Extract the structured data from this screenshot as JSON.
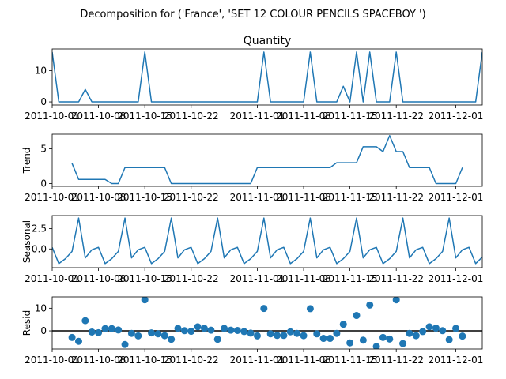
{
  "suptitle": "Decomposition for ('France', 'SET 12 COLOUR PENCILS SPACEBOY ')",
  "chart_data": {
    "type": "line",
    "x_tick_labels": [
      "2011-10-01",
      "2011-10-08",
      "2011-10-15",
      "2011-10-22",
      "2011-11-01",
      "2011-11-08",
      "2011-11-15",
      "2011-11-22",
      "2011-12-01"
    ],
    "x_tick_positions": [
      0,
      7,
      14,
      21,
      31,
      38,
      45,
      52,
      61
    ],
    "x_range": [
      0,
      65
    ],
    "colors": {
      "line": "#1f77b4",
      "axis": "#000000",
      "zero_line": "#000000"
    },
    "panels": [
      {
        "name": "observed",
        "title": "Quantity",
        "ylabel": "",
        "plot": "line",
        "ylim": [
          -1,
          17
        ],
        "yticks": [
          0,
          10
        ],
        "x": [
          0,
          1,
          2,
          3,
          4,
          5,
          6,
          7,
          8,
          9,
          10,
          11,
          12,
          13,
          14,
          15,
          16,
          17,
          18,
          19,
          20,
          21,
          22,
          23,
          24,
          25,
          26,
          27,
          28,
          29,
          30,
          31,
          32,
          33,
          34,
          35,
          36,
          37,
          38,
          39,
          40,
          41,
          42,
          43,
          44,
          45,
          46,
          47,
          48,
          49,
          50,
          51,
          52,
          53,
          54,
          55,
          56,
          57,
          58,
          59,
          60,
          61,
          62,
          63,
          64,
          65
        ],
        "values": [
          16,
          0,
          0,
          0,
          0,
          4,
          0,
          0,
          0,
          0,
          0,
          0,
          0,
          0,
          16,
          0,
          0,
          0,
          0,
          0,
          0,
          0,
          0,
          0,
          0,
          0,
          0,
          0,
          0,
          0,
          0,
          0,
          16,
          0,
          0,
          0,
          0,
          0,
          0,
          16,
          0,
          0,
          0,
          0,
          5,
          0,
          16,
          0,
          16,
          0,
          0,
          0,
          16,
          0,
          0,
          0,
          0,
          0,
          0,
          0,
          0,
          0,
          0,
          0,
          0,
          16
        ]
      },
      {
        "name": "trend",
        "title": "",
        "ylabel": "Trend",
        "plot": "line",
        "ylim": [
          -0.4,
          7.1
        ],
        "yticks": [
          0,
          5
        ],
        "x": [
          3,
          4,
          5,
          6,
          7,
          8,
          9,
          10,
          11,
          12,
          13,
          14,
          15,
          16,
          17,
          18,
          19,
          20,
          21,
          22,
          23,
          24,
          25,
          26,
          27,
          28,
          29,
          30,
          31,
          32,
          33,
          34,
          35,
          36,
          37,
          38,
          39,
          40,
          41,
          42,
          43,
          44,
          45,
          46,
          47,
          48,
          49,
          50,
          51,
          52,
          53,
          54,
          55,
          56,
          57,
          58,
          59,
          60,
          61,
          62
        ],
        "values": [
          2.9,
          0.6,
          0.6,
          0.6,
          0.6,
          0.6,
          0.0,
          0.0,
          2.3,
          2.3,
          2.3,
          2.3,
          2.3,
          2.3,
          2.3,
          0.0,
          0.0,
          0.0,
          0.0,
          0.0,
          0.0,
          0.0,
          0.0,
          0.0,
          0.0,
          0.0,
          0.0,
          0.0,
          2.3,
          2.3,
          2.3,
          2.3,
          2.3,
          2.3,
          2.3,
          2.3,
          2.3,
          2.3,
          2.3,
          2.3,
          3.0,
          3.0,
          3.0,
          3.0,
          5.3,
          5.3,
          5.3,
          4.6,
          6.9,
          4.6,
          4.6,
          2.3,
          2.3,
          2.3,
          2.3,
          0.0,
          0.0,
          0.0,
          0.0,
          2.3
        ]
      },
      {
        "name": "seasonal",
        "title": "",
        "ylabel": "Seasonal",
        "plot": "line",
        "ylim": [
          -2.3,
          4.1
        ],
        "yticks": [
          -0.0,
          2.5
        ],
        "ytick_labels": [
          "0.0",
          "2.5"
        ],
        "x": [
          0,
          1,
          2,
          3,
          4,
          5,
          6,
          7,
          8,
          9,
          10,
          11,
          12,
          13,
          14,
          15,
          16,
          17,
          18,
          19,
          20,
          21,
          22,
          23,
          24,
          25,
          26,
          27,
          28,
          29,
          30,
          31,
          32,
          33,
          34,
          35,
          36,
          37,
          38,
          39,
          40,
          41,
          42,
          43,
          44,
          45,
          46,
          47,
          48,
          49,
          50,
          51,
          52,
          53,
          54,
          55,
          56,
          57,
          58,
          59,
          60,
          61,
          62,
          63,
          64,
          65
        ],
        "values": [
          0.2,
          -1.8,
          -1.2,
          -0.3,
          3.8,
          -1.1,
          -0.1,
          0.2,
          -1.8,
          -1.2,
          -0.3,
          3.8,
          -1.1,
          -0.1,
          0.2,
          -1.8,
          -1.2,
          -0.3,
          3.8,
          -1.1,
          -0.1,
          0.2,
          -1.8,
          -1.2,
          -0.3,
          3.8,
          -1.1,
          -0.1,
          0.2,
          -1.8,
          -1.2,
          -0.3,
          3.8,
          -1.1,
          -0.1,
          0.2,
          -1.8,
          -1.2,
          -0.3,
          3.8,
          -1.1,
          -0.1,
          0.2,
          -1.8,
          -1.2,
          -0.3,
          3.8,
          -1.1,
          -0.1,
          0.2,
          -1.8,
          -1.2,
          -0.3,
          3.8,
          -1.1,
          -0.1,
          0.2,
          -1.8,
          -1.2,
          -0.3,
          3.8,
          -1.1,
          -0.1,
          0.2,
          -1.8,
          -1.0
        ]
      },
      {
        "name": "resid",
        "title": "",
        "ylabel": "Resid",
        "plot": "scatter",
        "ylim": [
          -8,
          15
        ],
        "yticks": [
          0,
          10
        ],
        "zero_line": true,
        "x": [
          3,
          4,
          5,
          6,
          7,
          8,
          9,
          10,
          11,
          12,
          13,
          14,
          15,
          16,
          17,
          18,
          19,
          20,
          21,
          22,
          23,
          24,
          25,
          26,
          27,
          28,
          29,
          30,
          31,
          32,
          33,
          34,
          35,
          36,
          37,
          38,
          39,
          40,
          41,
          42,
          43,
          44,
          45,
          46,
          47,
          48,
          49,
          50,
          51,
          52,
          53,
          54,
          55,
          56,
          57,
          58,
          59,
          60,
          61,
          62
        ],
        "values": [
          -2.9,
          -4.6,
          4.5,
          -0.5,
          -0.8,
          1.0,
          1.0,
          0.4,
          -6.0,
          -1.1,
          -2.2,
          13.7,
          -0.9,
          -1.3,
          -2.1,
          -3.7,
          1.1,
          0.1,
          -0.2,
          1.8,
          1.1,
          0.3,
          -3.7,
          1.1,
          0.3,
          0.2,
          -0.3,
          -1.0,
          -2.2,
          9.9,
          -1.3,
          -2.0,
          -2.0,
          -0.4,
          -1.1,
          -2.1,
          9.8,
          -1.3,
          -3.3,
          -3.3,
          -1.1,
          2.9,
          -5.3,
          6.8,
          -4.1,
          11.4,
          -6.9,
          -2.9,
          -3.6,
          13.7,
          -5.6,
          -1.1,
          -2.1,
          -0.3,
          1.8,
          1.2,
          0.1,
          -3.9,
          1.1,
          -2.3
        ]
      }
    ]
  }
}
